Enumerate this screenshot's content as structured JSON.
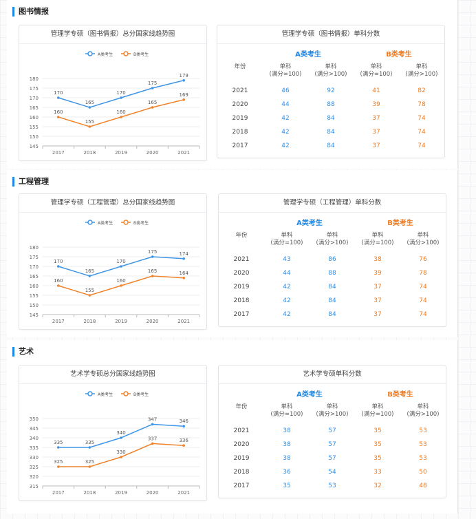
{
  "colors": {
    "series_a": "#3f95e6",
    "series_b": "#f0832b",
    "accent": "#1e88e5"
  },
  "sections": [
    {
      "title": "图书情报",
      "chart_title": "管理学专硕（图书情报）总分国家线趋势图",
      "table_title": "管理学专硕（图书情报）单科分数",
      "chart_data": {
        "type": "line",
        "categories": [
          "2017",
          "2018",
          "2019",
          "2020",
          "2021"
        ],
        "series": [
          {
            "name": "A类考生",
            "values": [
              170,
              165,
              170,
              175,
              179
            ]
          },
          {
            "name": "B类考生",
            "values": [
              160,
              155,
              160,
              165,
              169
            ]
          }
        ],
        "ylim": [
          145,
          180
        ],
        "yticks": [
          145,
          150,
          155,
          160,
          165,
          170,
          175,
          180
        ],
        "legend": "top-center",
        "grid": true
      },
      "table": {
        "year_header": "年份",
        "group_a": "A类考生",
        "group_b": "B类考生",
        "sub_headers": [
          [
            "单科",
            "(满分=100)"
          ],
          [
            "单科",
            "(满分>100)"
          ],
          [
            "单科",
            "(满分=100)"
          ],
          [
            "单科",
            "(满分>100)"
          ]
        ],
        "rows": [
          [
            "2021",
            "46",
            "92",
            "41",
            "82"
          ],
          [
            "2020",
            "44",
            "88",
            "39",
            "78"
          ],
          [
            "2019",
            "42",
            "84",
            "37",
            "74"
          ],
          [
            "2018",
            "42",
            "84",
            "37",
            "74"
          ],
          [
            "2017",
            "42",
            "84",
            "37",
            "74"
          ]
        ]
      }
    },
    {
      "title": "工程管理",
      "chart_title": "管理学专硕（工程管理）总分国家线趋势图",
      "table_title": "管理学专硕（工程管理）单科分数",
      "chart_data": {
        "type": "line",
        "categories": [
          "2017",
          "2018",
          "2019",
          "2020",
          "2021"
        ],
        "series": [
          {
            "name": "A类考生",
            "values": [
              170,
              165,
              170,
              175,
              174
            ]
          },
          {
            "name": "B类考生",
            "values": [
              160,
              155,
              160,
              165,
              164
            ]
          }
        ],
        "ylim": [
          145,
          180
        ],
        "yticks": [
          145,
          150,
          155,
          160,
          165,
          170,
          175,
          180
        ],
        "legend": "top-center",
        "grid": true
      },
      "table": {
        "year_header": "年份",
        "group_a": "A类考生",
        "group_b": "B类考生",
        "sub_headers": [
          [
            "单科",
            "(满分=100)"
          ],
          [
            "单科",
            "(满分>100)"
          ],
          [
            "单科",
            "(满分=100)"
          ],
          [
            "单科",
            "(满分>100)"
          ]
        ],
        "rows": [
          [
            "2021",
            "43",
            "86",
            "38",
            "76"
          ],
          [
            "2020",
            "44",
            "88",
            "39",
            "78"
          ],
          [
            "2019",
            "42",
            "84",
            "37",
            "74"
          ],
          [
            "2018",
            "42",
            "84",
            "37",
            "74"
          ],
          [
            "2017",
            "42",
            "84",
            "37",
            "74"
          ]
        ]
      }
    },
    {
      "title": "艺术",
      "chart_title": "艺术学专硕总分国家线趋势图",
      "table_title": "艺术学专硕单科分数",
      "chart_data": {
        "type": "line",
        "categories": [
          "2017",
          "2018",
          "2019",
          "2020",
          "2021"
        ],
        "series": [
          {
            "name": "A类考生",
            "values": [
              335,
              335,
              340,
              347,
              346
            ]
          },
          {
            "name": "B类考生",
            "values": [
              325,
              325,
              330,
              337,
              336
            ]
          }
        ],
        "ylim": [
          315,
          350
        ],
        "yticks": [
          315,
          320,
          325,
          330,
          335,
          340,
          345,
          350
        ],
        "legend": "top-center",
        "grid": true
      },
      "table": {
        "year_header": "年份",
        "group_a": "A类考生",
        "group_b": "B类考生",
        "sub_headers": [
          [
            "单科",
            "(满分=100)"
          ],
          [
            "单科",
            "(满分>100)"
          ],
          [
            "单科",
            "(满分=100)"
          ],
          [
            "单科",
            "(满分>100)"
          ]
        ],
        "rows": [
          [
            "2021",
            "38",
            "57",
            "35",
            "53"
          ],
          [
            "2020",
            "38",
            "57",
            "35",
            "53"
          ],
          [
            "2019",
            "38",
            "57",
            "35",
            "53"
          ],
          [
            "2018",
            "36",
            "54",
            "33",
            "50"
          ],
          [
            "2017",
            "35",
            "53",
            "32",
            "48"
          ]
        ]
      }
    }
  ]
}
